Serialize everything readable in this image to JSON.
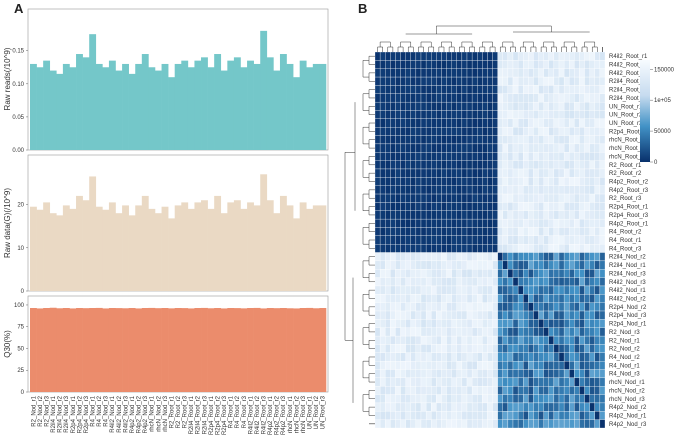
{
  "panel_a_label": "A",
  "panel_b_label": "B",
  "samples": [
    "R2_Nod_r1",
    "R2_Nod_r2",
    "R2_Nod_r3",
    "R2il4_Nod_r1",
    "R2il4_Nod_r2",
    "R2il4_Nod_r3",
    "R2p4_Nod_r1",
    "R2p4_Nod_r2",
    "R2p4_Nod_r3",
    "R4_Nod_r1",
    "R4_Nod_r2",
    "R4_Nod_r3",
    "R4il2_Nod_r1",
    "R4il2_Nod_r2",
    "R4il2_Nod_r3",
    "R4p2_Nod_r1",
    "R4p2_Nod_r2",
    "R4p2_Nod_r3",
    "rhcN_Nod_r1",
    "rhcN_Nod_r2",
    "rhcN_Nod_r3",
    "R2_Root_r1",
    "R2_Root_r2",
    "R2_Root_r3",
    "R2il4_Root_r1",
    "R2il4_Root_r2",
    "R2il4_Root_r3",
    "R2p4_Root_r1",
    "R2p4_Root_r2",
    "R2p4_Root_r3",
    "R4_Root_r1",
    "R4_Root_r2",
    "R4_Root_r3",
    "R4il2_Root_r1",
    "R4il2_Root_r2",
    "R4il2_Root_r3",
    "R4p2_Root_r1",
    "R4p2_Root_r2",
    "R4p2_Root_r3",
    "rhcN_Root_r1",
    "rhcN_Root_r2",
    "rhcN_Root_r3",
    "UN_Root_r1",
    "UN_Root_r2",
    "UN_Root_r3"
  ],
  "chart_data": [
    {
      "type": "bar",
      "name": "raw-reads",
      "ylabel": "Raw reads(/10^9)",
      "yticks": [
        "0.00",
        "0.05",
        "0.10",
        "0.15"
      ],
      "ylim": [
        0,
        0.21
      ],
      "color": "#74c7c9",
      "values": [
        0.13,
        0.125,
        0.135,
        0.12,
        0.115,
        0.13,
        0.125,
        0.145,
        0.14,
        0.175,
        0.13,
        0.125,
        0.135,
        0.12,
        0.13,
        0.115,
        0.13,
        0.145,
        0.125,
        0.12,
        0.13,
        0.11,
        0.13,
        0.135,
        0.125,
        0.135,
        0.14,
        0.125,
        0.145,
        0.12,
        0.135,
        0.14,
        0.125,
        0.135,
        0.13,
        0.18,
        0.14,
        0.12,
        0.145,
        0.13,
        0.11,
        0.135,
        0.125,
        0.13,
        0.13
      ]
    },
    {
      "type": "bar",
      "name": "raw-data",
      "ylabel": "Raw data(G)(/10^9)",
      "yticks": [
        "0",
        "10",
        "20"
      ],
      "ylim": [
        0,
        31
      ],
      "color": "#ead9c4",
      "values": [
        19.5,
        18.8,
        20.5,
        18.0,
        17.5,
        19.8,
        19.0,
        22.0,
        21.0,
        26.5,
        19.5,
        18.8,
        20.5,
        18.0,
        19.8,
        17.5,
        19.8,
        22.0,
        19.0,
        18.0,
        19.5,
        16.8,
        19.8,
        20.5,
        19.0,
        20.5,
        21.0,
        19.0,
        22.0,
        18.0,
        20.5,
        21.0,
        19.0,
        20.5,
        19.8,
        27.0,
        21.0,
        18.0,
        22.0,
        19.8,
        16.8,
        20.5,
        19.0,
        19.8,
        19.8
      ]
    },
    {
      "type": "bar",
      "name": "q30",
      "ylabel": "Q30(%)",
      "yticks": [
        "0",
        "25",
        "50",
        "75",
        "100"
      ],
      "ylim": [
        0,
        108
      ],
      "color": "#eb8c6c",
      "values": [
        96.5,
        96.0,
        96.5,
        96.8,
        96.2,
        96.5,
        96.0,
        96.5,
        96.3,
        96.5,
        96.6,
        96.0,
        96.5,
        96.4,
        96.2,
        96.5,
        96.0,
        96.5,
        96.6,
        96.3,
        96.5,
        96.1,
        96.5,
        96.4,
        96.0,
        96.5,
        96.6,
        96.2,
        96.5,
        96.0,
        96.5,
        96.4,
        96.1,
        96.5,
        96.6,
        96.0,
        96.5,
        96.3,
        96.5,
        96.2,
        96.0,
        96.5,
        96.6,
        96.2,
        96.5
      ]
    },
    {
      "type": "heatmap",
      "name": "sample-correlation",
      "row_labels": [
        "R4il2_Root_r1",
        "R4il2_Root_r2",
        "R4il2_Root_r3",
        "R2il4_Root_r1",
        "R2il4_Root_r2",
        "R2il4_Root_r3",
        "UN_Root_r1",
        "UN_Root_r2",
        "UN_Root_r3",
        "R2p4_Root_r2",
        "rhcN_Root_r1",
        "rhcN_Root_r2",
        "rhcN_Root_r3",
        "R2_Root_r1",
        "R2_Root_r2",
        "R4p2_Root_r2",
        "R4p2_Root_r3",
        "R2_Root_r3",
        "R2p4_Root_r1",
        "R2p4_Root_r3",
        "R4p2_Root_r1",
        "R4_Root_r2",
        "R4_Root_r1",
        "R4_Root_r3",
        "R2il4_Nod_r2",
        "R2il4_Nod_r1",
        "R2il4_Nod_r3",
        "R4il2_Nod_r3",
        "R4il2_Nod_r1",
        "R4il2_Nod_r2",
        "R2p4_Nod_r2",
        "R2p4_Nod_r3",
        "R2p4_Nod_r1",
        "R2_Nod_r3",
        "R2_Nod_r1",
        "R2_Nod_r2",
        "R4_Nod_r2",
        "R4_Nod_r1",
        "R4_Nod_r3",
        "rhcN_Nod_r1",
        "rhcN_Nod_r2",
        "rhcN_Nod_r3",
        "R4p2_Nod_r2",
        "R4p2_Nod_r1",
        "R4p2_Nod_r3"
      ],
      "groups": {
        "root_count": 24,
        "nod_count": 21
      },
      "colorbar": {
        "ticks": [
          "150000",
          "1e+05",
          "50000",
          "0"
        ],
        "values": [
          150000,
          100000,
          50000,
          0
        ],
        "max": 165000,
        "low_color": "#08306b",
        "high_color": "#f7fbff"
      }
    }
  ]
}
